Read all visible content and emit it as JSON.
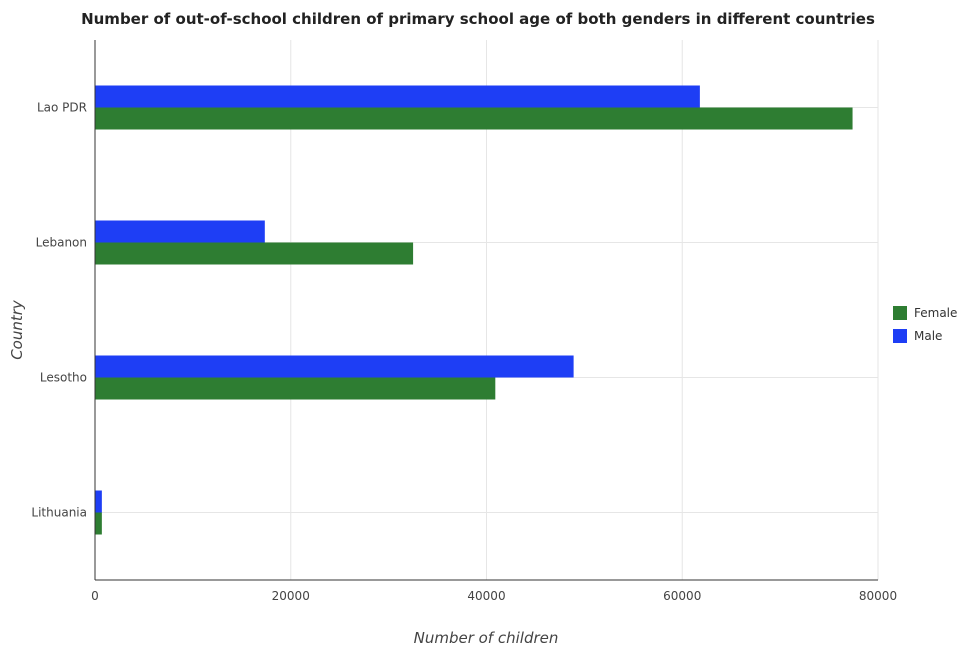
{
  "chart_data": {
    "type": "bar",
    "orientation": "horizontal",
    "title": "Number of out-of-school children of primary school age of both genders in different countries",
    "xlabel": "Number of children",
    "ylabel": "Country",
    "categories": [
      "Lao PDR",
      "Lebanon",
      "Lesotho",
      "Lithuania"
    ],
    "series": [
      {
        "name": "Female",
        "color": "#2e7d32",
        "values": [
          77400,
          32500,
          40900,
          700
        ]
      },
      {
        "name": "Male",
        "color": "#1e3ef5",
        "values": [
          61800,
          17350,
          48900,
          700
        ]
      }
    ],
    "xlim": [
      0,
      80000
    ],
    "xticks": [
      0,
      20000,
      40000,
      60000,
      80000
    ],
    "xtick_labels": [
      "0",
      "20000",
      "40000",
      "60000",
      "80000"
    ],
    "grid": true,
    "legend_position": "right"
  }
}
